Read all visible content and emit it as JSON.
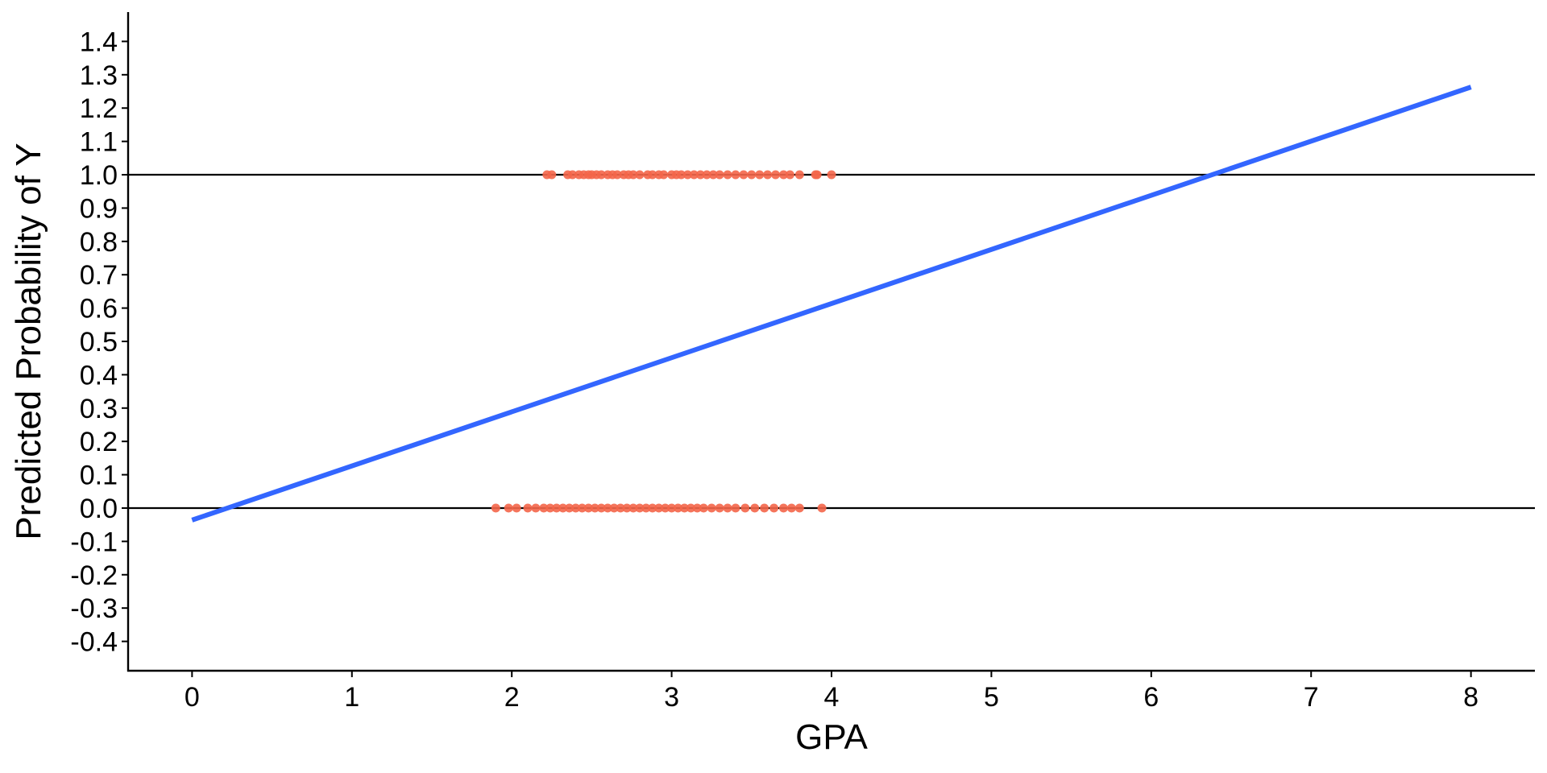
{
  "chart_data": {
    "type": "scatter",
    "x_label": "GPA",
    "y_label": "Predicted Probability of Y",
    "xlim": [
      -0.4,
      8.4
    ],
    "ylim": [
      -0.488,
      1.488
    ],
    "xticks": [
      0,
      1,
      2,
      3,
      4,
      5,
      6,
      7,
      8
    ],
    "yticks": [
      -0.4,
      -0.3,
      -0.2,
      -0.1,
      {
        "value": 0,
        "label": "0.0"
      },
      0.1,
      0.2,
      0.3,
      0.4,
      0.5,
      0.6,
      0.7,
      0.8,
      0.9,
      {
        "value": 1,
        "label": "1.0"
      },
      1.1,
      1.2,
      1.3,
      1.4
    ],
    "reference_lines": [
      0,
      1
    ],
    "reference_line_color": "#000000",
    "series": [
      {
        "type": "scatter",
        "color": "#f4664a",
        "x": [
          2.22,
          2.25,
          2.35,
          2.38,
          2.42,
          2.45,
          2.48,
          2.5,
          2.53,
          2.56,
          2.6,
          2.63,
          2.66,
          2.7,
          2.73,
          2.76,
          2.8,
          2.85,
          2.88,
          2.92,
          2.95,
          3.0,
          3.03,
          3.06,
          3.1,
          3.14,
          3.18,
          3.22,
          3.26,
          3.3,
          3.35,
          3.4,
          3.45,
          3.5,
          3.55,
          3.6,
          3.65,
          3.7,
          3.74,
          3.8,
          3.9,
          3.91,
          4.0
        ],
        "values": [
          1,
          1,
          1,
          1,
          1,
          1,
          1,
          1,
          1,
          1,
          1,
          1,
          1,
          1,
          1,
          1,
          1,
          1,
          1,
          1,
          1,
          1,
          1,
          1,
          1,
          1,
          1,
          1,
          1,
          1,
          1,
          1,
          1,
          1,
          1,
          1,
          1,
          1,
          1,
          1,
          1,
          1,
          1
        ]
      },
      {
        "type": "scatter",
        "color": "#f4664a",
        "x": [
          1.9,
          1.98,
          2.03,
          2.1,
          2.15,
          2.2,
          2.24,
          2.28,
          2.32,
          2.36,
          2.4,
          2.44,
          2.48,
          2.52,
          2.56,
          2.6,
          2.64,
          2.68,
          2.72,
          2.76,
          2.8,
          2.84,
          2.88,
          2.92,
          2.96,
          3.0,
          3.04,
          3.08,
          3.12,
          3.16,
          3.2,
          3.25,
          3.3,
          3.35,
          3.4,
          3.46,
          3.52,
          3.58,
          3.64,
          3.7,
          3.75,
          3.8,
          3.94
        ],
        "values": [
          0,
          0,
          0,
          0,
          0,
          0,
          0,
          0,
          0,
          0,
          0,
          0,
          0,
          0,
          0,
          0,
          0,
          0,
          0,
          0,
          0,
          0,
          0,
          0,
          0,
          0,
          0,
          0,
          0,
          0,
          0,
          0,
          0,
          0,
          0,
          0,
          0,
          0,
          0,
          0,
          0,
          0,
          0
        ]
      },
      {
        "type": "line",
        "color": "#3366ff",
        "x": [
          0,
          8
        ],
        "values": [
          -0.036,
          1.263
        ]
      }
    ]
  }
}
